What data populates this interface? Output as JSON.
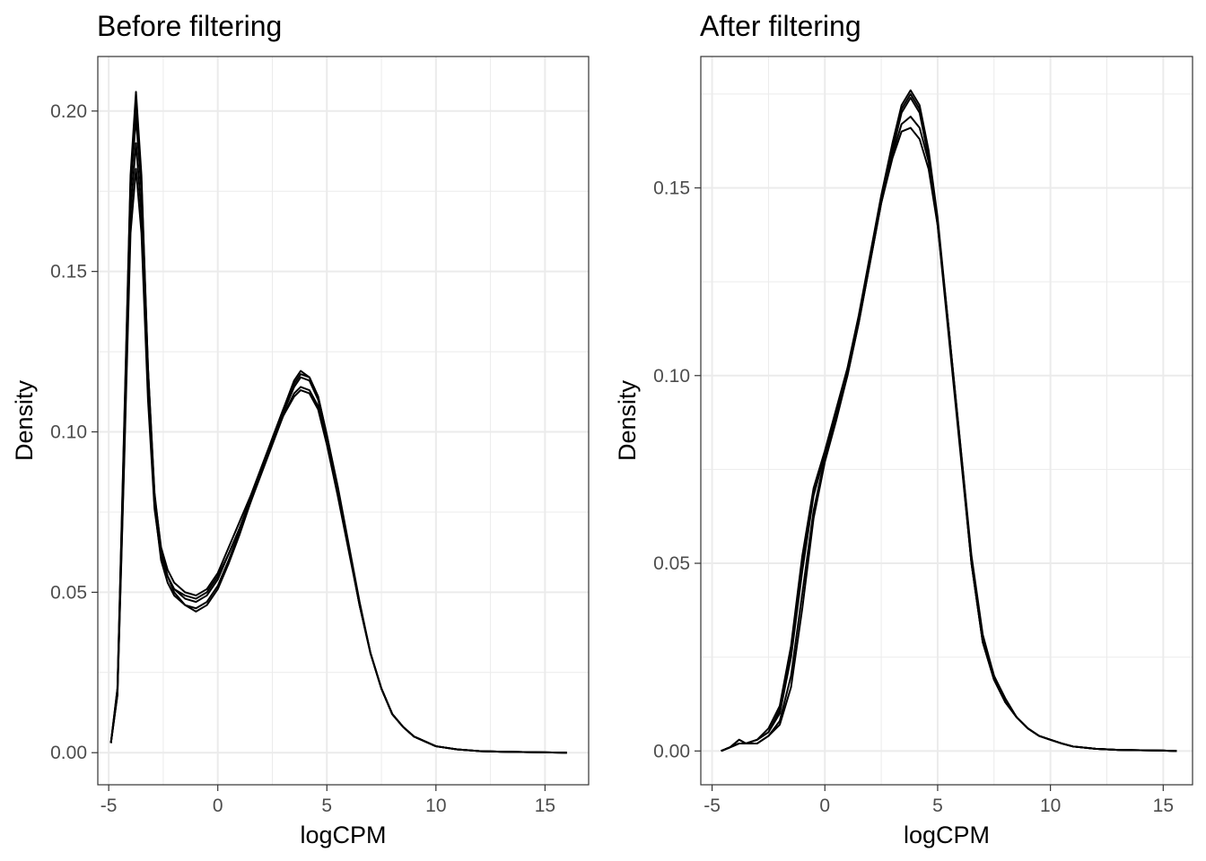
{
  "chart_data": [
    {
      "type": "line",
      "title": "Before filtering",
      "xlabel": "logCPM",
      "ylabel": "Density",
      "xlim": [
        -5.5,
        17
      ],
      "ylim": [
        -0.01,
        0.217
      ],
      "x_ticks": [
        -5,
        0,
        5,
        10,
        15
      ],
      "x_tick_labels": [
        "-5",
        "0",
        "5",
        "10",
        "15"
      ],
      "y_ticks": [
        0,
        0.05,
        0.1,
        0.15,
        0.2
      ],
      "y_tick_labels": [
        "0.00",
        "0.05",
        "0.10",
        "0.15",
        "0.20"
      ],
      "grid": true,
      "legend": "none",
      "line_color": "#000000",
      "series": [
        {
          "x": [
            -4.9,
            -4.6,
            -4.3,
            -4.0,
            -3.75,
            -3.5,
            -3.2,
            -2.9,
            -2.6,
            -2.3,
            -2.0,
            -1.5,
            -1.0,
            -0.5,
            0,
            0.5,
            1,
            1.5,
            2,
            2.5,
            3,
            3.5,
            3.8,
            4.2,
            4.6,
            5,
            5.5,
            6,
            6.5,
            7,
            7.5,
            8,
            8.5,
            9,
            10,
            11,
            12,
            13,
            14,
            15,
            16
          ],
          "y": [
            0.003,
            0.02,
            0.1,
            0.18,
            0.206,
            0.18,
            0.12,
            0.08,
            0.062,
            0.055,
            0.051,
            0.048,
            0.047,
            0.049,
            0.054,
            0.062,
            0.07,
            0.079,
            0.088,
            0.097,
            0.106,
            0.114,
            0.117,
            0.116,
            0.11,
            0.098,
            0.082,
            0.064,
            0.046,
            0.031,
            0.02,
            0.012,
            0.008,
            0.005,
            0.002,
            0.001,
            0.0005,
            0.0003,
            0.0002,
            0.0001,
            0
          ]
        },
        {
          "x": [
            -4.9,
            -4.6,
            -4.3,
            -4.0,
            -3.75,
            -3.5,
            -3.2,
            -2.9,
            -2.6,
            -2.3,
            -2.0,
            -1.5,
            -1.0,
            -0.5,
            0,
            0.5,
            1,
            1.5,
            2,
            2.5,
            3,
            3.5,
            3.8,
            4.2,
            4.6,
            5,
            5.5,
            6,
            6.5,
            7,
            7.5,
            8,
            8.5,
            9,
            10,
            11,
            12,
            13,
            14,
            15,
            16
          ],
          "y": [
            0.003,
            0.018,
            0.09,
            0.168,
            0.19,
            0.168,
            0.114,
            0.077,
            0.06,
            0.053,
            0.049,
            0.046,
            0.045,
            0.047,
            0.052,
            0.06,
            0.069,
            0.078,
            0.087,
            0.096,
            0.105,
            0.111,
            0.113,
            0.112,
            0.107,
            0.096,
            0.08,
            0.063,
            0.046,
            0.031,
            0.02,
            0.012,
            0.008,
            0.005,
            0.002,
            0.001,
            0.0005,
            0.0003,
            0.0002,
            0.0001,
            0
          ]
        },
        {
          "x": [
            -4.9,
            -4.6,
            -4.3,
            -4.0,
            -3.75,
            -3.5,
            -3.2,
            -2.9,
            -2.6,
            -2.3,
            -2.0,
            -1.5,
            -1.0,
            -0.5,
            0,
            0.5,
            1,
            1.5,
            2,
            2.5,
            3,
            3.5,
            3.8,
            4.2,
            4.6,
            5,
            5.5,
            6,
            6.5,
            7,
            7.5,
            8,
            8.5,
            9,
            10,
            11,
            12,
            13,
            14,
            15,
            16
          ],
          "y": [
            0.003,
            0.019,
            0.095,
            0.175,
            0.198,
            0.175,
            0.118,
            0.08,
            0.064,
            0.057,
            0.053,
            0.05,
            0.049,
            0.051,
            0.056,
            0.064,
            0.072,
            0.08,
            0.089,
            0.098,
            0.107,
            0.116,
            0.119,
            0.117,
            0.111,
            0.099,
            0.083,
            0.065,
            0.047,
            0.031,
            0.02,
            0.012,
            0.008,
            0.005,
            0.002,
            0.001,
            0.0005,
            0.0003,
            0.0002,
            0.0001,
            0
          ]
        },
        {
          "x": [
            -4.9,
            -4.6,
            -4.3,
            -4.0,
            -3.75,
            -3.5,
            -3.2,
            -2.9,
            -2.6,
            -2.3,
            -2.0,
            -1.5,
            -1.0,
            -0.5,
            0,
            0.5,
            1,
            1.5,
            2,
            2.5,
            3,
            3.5,
            3.8,
            4.2,
            4.6,
            5,
            5.5,
            6,
            6.5,
            7,
            7.5,
            8,
            8.5,
            9,
            10,
            11,
            12,
            13,
            14,
            15,
            16
          ],
          "y": [
            0.003,
            0.018,
            0.088,
            0.162,
            0.182,
            0.162,
            0.11,
            0.076,
            0.061,
            0.055,
            0.051,
            0.049,
            0.048,
            0.05,
            0.055,
            0.062,
            0.07,
            0.079,
            0.088,
            0.097,
            0.105,
            0.112,
            0.114,
            0.113,
            0.108,
            0.097,
            0.081,
            0.064,
            0.046,
            0.031,
            0.02,
            0.012,
            0.008,
            0.005,
            0.002,
            0.001,
            0.0005,
            0.0003,
            0.0002,
            0.0001,
            0
          ]
        },
        {
          "x": [
            -4.9,
            -4.6,
            -4.3,
            -4.0,
            -3.75,
            -3.5,
            -3.2,
            -2.9,
            -2.6,
            -2.3,
            -2.0,
            -1.5,
            -1.0,
            -0.5,
            0,
            0.5,
            1,
            1.5,
            2,
            2.5,
            3,
            3.5,
            3.8,
            4.2,
            4.6,
            5,
            5.5,
            6,
            6.5,
            7,
            7.5,
            8,
            8.5,
            9,
            10,
            11,
            12,
            13,
            14,
            15,
            16
          ],
          "y": [
            0.003,
            0.02,
            0.098,
            0.178,
            0.202,
            0.178,
            0.12,
            0.081,
            0.063,
            0.055,
            0.05,
            0.046,
            0.044,
            0.046,
            0.051,
            0.059,
            0.068,
            0.078,
            0.088,
            0.098,
            0.107,
            0.115,
            0.118,
            0.117,
            0.111,
            0.099,
            0.082,
            0.064,
            0.046,
            0.031,
            0.02,
            0.012,
            0.008,
            0.005,
            0.002,
            0.001,
            0.0005,
            0.0003,
            0.0002,
            0.0001,
            0
          ]
        }
      ]
    },
    {
      "type": "line",
      "title": "After filtering",
      "xlabel": "logCPM",
      "ylabel": "Density",
      "xlim": [
        -5.5,
        16.3
      ],
      "ylim": [
        -0.009,
        0.185
      ],
      "x_ticks": [
        -5,
        0,
        5,
        10,
        15
      ],
      "x_tick_labels": [
        "-5",
        "0",
        "5",
        "10",
        "15"
      ],
      "y_ticks": [
        0,
        0.05,
        0.1,
        0.15
      ],
      "y_tick_labels": [
        "0.00",
        "0.05",
        "0.10",
        "0.15"
      ],
      "grid": true,
      "legend": "none",
      "line_color": "#000000",
      "series": [
        {
          "x": [
            -4.6,
            -4.2,
            -3.8,
            -3.5,
            -3,
            -2.5,
            -2,
            -1.5,
            -1,
            -0.5,
            0,
            0.5,
            1,
            1.5,
            2,
            2.5,
            3,
            3.4,
            3.8,
            4.2,
            4.6,
            5,
            5.5,
            6,
            6.5,
            7,
            7.5,
            8,
            8.5,
            9,
            9.5,
            10,
            10.5,
            11,
            12,
            13,
            14,
            15,
            15.6
          ],
          "y": [
            0,
            0.001,
            0.003,
            0.002,
            0.003,
            0.005,
            0.01,
            0.025,
            0.048,
            0.068,
            0.079,
            0.09,
            0.101,
            0.115,
            0.131,
            0.147,
            0.16,
            0.17,
            0.174,
            0.17,
            0.158,
            0.14,
            0.11,
            0.08,
            0.05,
            0.029,
            0.019,
            0.013,
            0.009,
            0.006,
            0.004,
            0.003,
            0.002,
            0.0012,
            0.0006,
            0.0003,
            0.0002,
            0.0001,
            0
          ]
        },
        {
          "x": [
            -4.6,
            -4.2,
            -3.8,
            -3.5,
            -3,
            -2.5,
            -2,
            -1.5,
            -1,
            -0.5,
            0,
            0.5,
            1,
            1.5,
            2,
            2.5,
            3,
            3.4,
            3.8,
            4.2,
            4.6,
            5,
            5.5,
            6,
            6.5,
            7,
            7.5,
            8,
            8.5,
            9,
            9.5,
            10,
            10.5,
            11,
            12,
            13,
            14,
            15,
            15.6
          ],
          "y": [
            0,
            0.001,
            0.002,
            0.002,
            0.002,
            0.004,
            0.007,
            0.017,
            0.038,
            0.062,
            0.077,
            0.088,
            0.1,
            0.114,
            0.13,
            0.146,
            0.158,
            0.165,
            0.166,
            0.163,
            0.155,
            0.14,
            0.112,
            0.082,
            0.052,
            0.031,
            0.02,
            0.014,
            0.009,
            0.006,
            0.004,
            0.003,
            0.002,
            0.0012,
            0.0006,
            0.0003,
            0.0002,
            0.0001,
            0
          ]
        },
        {
          "x": [
            -4.6,
            -4.2,
            -3.8,
            -3.5,
            -3,
            -2.5,
            -2,
            -1.5,
            -1,
            -0.5,
            0,
            0.5,
            1,
            1.5,
            2,
            2.5,
            3,
            3.4,
            3.8,
            4.2,
            4.6,
            5,
            5.5,
            6,
            6.5,
            7,
            7.5,
            8,
            8.5,
            9,
            9.5,
            10,
            10.5,
            11,
            12,
            13,
            14,
            15,
            15.6
          ],
          "y": [
            0,
            0.001,
            0.003,
            0.002,
            0.003,
            0.006,
            0.012,
            0.028,
            0.052,
            0.07,
            0.08,
            0.091,
            0.102,
            0.116,
            0.132,
            0.148,
            0.162,
            0.172,
            0.176,
            0.172,
            0.16,
            0.142,
            0.112,
            0.081,
            0.05,
            0.029,
            0.019,
            0.013,
            0.009,
            0.006,
            0.004,
            0.003,
            0.002,
            0.0012,
            0.0006,
            0.0003,
            0.0002,
            0.0001,
            0
          ]
        },
        {
          "x": [
            -4.6,
            -4.2,
            -3.8,
            -3.5,
            -3,
            -2.5,
            -2,
            -1.5,
            -1,
            -0.5,
            0,
            0.5,
            1,
            1.5,
            2,
            2.5,
            3,
            3.4,
            3.8,
            4.2,
            4.6,
            5,
            5.5,
            6,
            6.5,
            7,
            7.5,
            8,
            8.5,
            9,
            9.5,
            10,
            10.5,
            11,
            12,
            13,
            14,
            15,
            15.6
          ],
          "y": [
            0,
            0.001,
            0.002,
            0.002,
            0.002,
            0.004,
            0.008,
            0.02,
            0.042,
            0.064,
            0.078,
            0.089,
            0.1,
            0.114,
            0.13,
            0.146,
            0.159,
            0.167,
            0.169,
            0.166,
            0.157,
            0.141,
            0.112,
            0.082,
            0.051,
            0.03,
            0.02,
            0.013,
            0.009,
            0.006,
            0.004,
            0.003,
            0.002,
            0.0012,
            0.0006,
            0.0003,
            0.0002,
            0.0001,
            0
          ]
        },
        {
          "x": [
            -4.6,
            -4.2,
            -3.8,
            -3.5,
            -3,
            -2.5,
            -2,
            -1.5,
            -1,
            -0.5,
            0,
            0.5,
            1,
            1.5,
            2,
            2.5,
            3,
            3.4,
            3.8,
            4.2,
            4.6,
            5,
            5.5,
            6,
            6.5,
            7,
            7.5,
            8,
            8.5,
            9,
            9.5,
            10,
            10.5,
            11,
            12,
            13,
            14,
            15,
            15.6
          ],
          "y": [
            0,
            0.001,
            0.002,
            0.002,
            0.003,
            0.005,
            0.011,
            0.027,
            0.05,
            0.069,
            0.079,
            0.09,
            0.101,
            0.115,
            0.131,
            0.147,
            0.161,
            0.171,
            0.175,
            0.171,
            0.159,
            0.141,
            0.111,
            0.081,
            0.05,
            0.029,
            0.019,
            0.013,
            0.009,
            0.006,
            0.004,
            0.003,
            0.002,
            0.0012,
            0.0006,
            0.0003,
            0.0002,
            0.0001,
            0
          ]
        }
      ]
    }
  ]
}
